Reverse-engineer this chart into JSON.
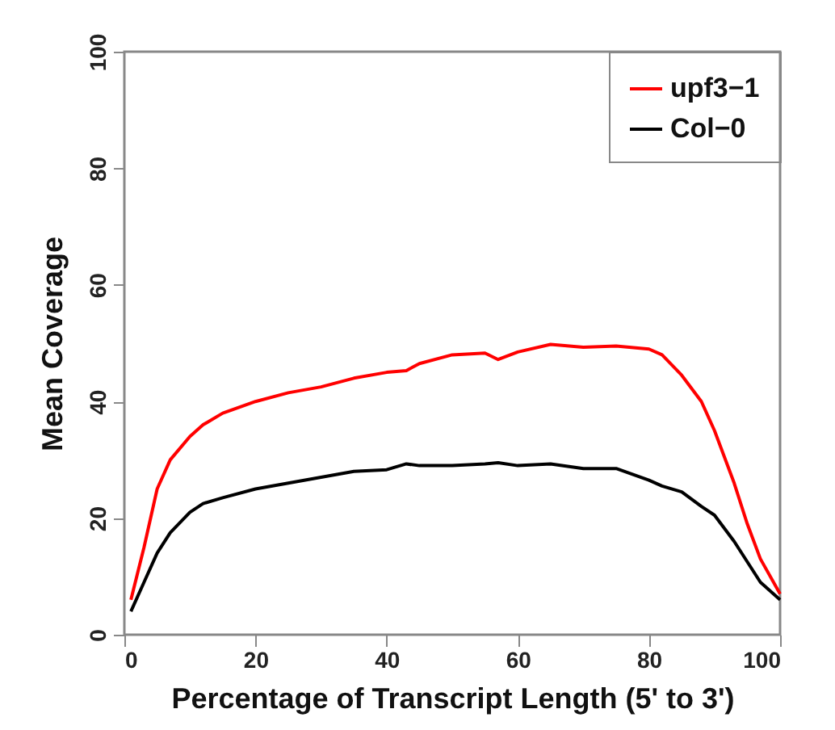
{
  "chart_data": {
    "type": "line",
    "xlabel": "Percentage of Transcript Length (5' to 3')",
    "ylabel": "Mean Coverage",
    "xlim": [
      0,
      100
    ],
    "ylim": [
      0,
      100
    ],
    "xticks": [
      0,
      20,
      40,
      60,
      80,
      100
    ],
    "yticks": [
      0,
      20,
      40,
      60,
      80,
      100
    ],
    "grid": false,
    "legend": "top right",
    "line_style": "solid",
    "marker": "none",
    "x": [
      1,
      3,
      5,
      7,
      10,
      12,
      15,
      20,
      25,
      30,
      35,
      40,
      43,
      45,
      50,
      55,
      57,
      60,
      65,
      70,
      75,
      80,
      82,
      85,
      88,
      90,
      93,
      95,
      97,
      100
    ],
    "series": [
      {
        "name": "upf3−1",
        "color": "#ff0000",
        "values": [
          6,
          15,
          25,
          30,
          34,
          36,
          38,
          40,
          41.5,
          42.5,
          44,
          45,
          45.3,
          46.5,
          48,
          48.3,
          47.2,
          48.5,
          49.8,
          49.3,
          49.5,
          49,
          48,
          44.5,
          40,
          35,
          26,
          19,
          13,
          7
        ]
      },
      {
        "name": "Col−0",
        "color": "#000000",
        "values": [
          4,
          9,
          14,
          17.5,
          21,
          22.5,
          23.5,
          25,
          26,
          27,
          28,
          28.3,
          29.3,
          29,
          29,
          29.3,
          29.5,
          29,
          29.3,
          28.5,
          28.5,
          26.5,
          25.5,
          24.5,
          22,
          20.5,
          16,
          12.5,
          9,
          6
        ]
      }
    ]
  }
}
